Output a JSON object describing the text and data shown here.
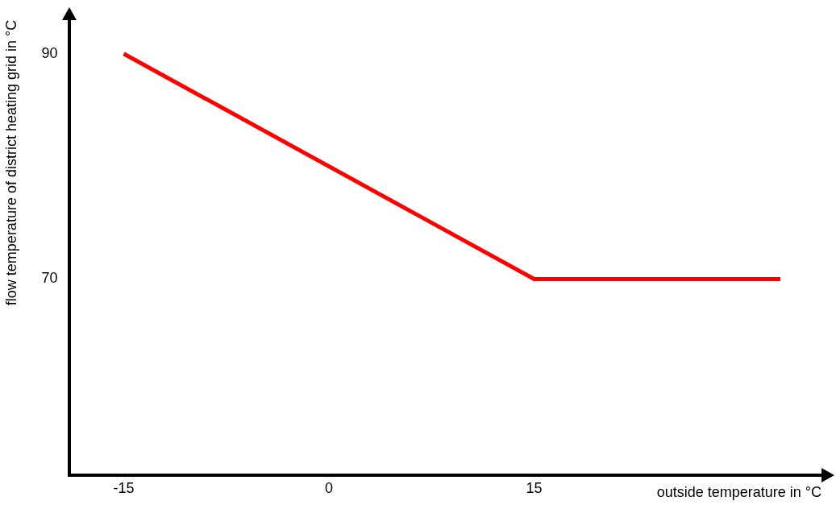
{
  "chart_data": {
    "type": "line",
    "xlabel": "outside temperature in °C",
    "ylabel": "flow temperature of district heating grid in °C",
    "xlim": [
      -19,
      36
    ],
    "ylim": [
      52.6,
      93
    ],
    "xticks": [
      -15,
      0,
      15
    ],
    "yticks": [
      70,
      90
    ],
    "series": [
      {
        "color": "#ff0000",
        "x": [
          -15,
          15,
          33
        ],
        "values": [
          90,
          70,
          70
        ]
      }
    ],
    "grid": false,
    "legend": false,
    "marker": "none",
    "line_style": "solid"
  }
}
